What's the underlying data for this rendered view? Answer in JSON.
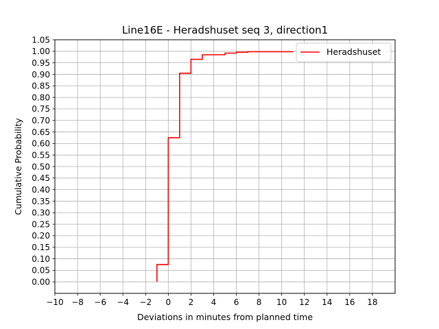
{
  "chart_data": {
    "type": "line",
    "title": "Line16E - Heradshuset seq 3, direction1",
    "xlabel": "Deviations in minutes from planned time",
    "ylabel": "Cumulative Probability",
    "xlim": [
      -10,
      20
    ],
    "ylim": [
      -0.05,
      1.05
    ],
    "x_ticks": [
      -10,
      -8,
      -6,
      -4,
      -2,
      0,
      2,
      4,
      6,
      8,
      10,
      12,
      14,
      16,
      18
    ],
    "x_tick_labels": [
      "−10",
      "−8",
      "−6",
      "−4",
      "−2",
      "0",
      "2",
      "4",
      "6",
      "8",
      "10",
      "12",
      "14",
      "16",
      "18"
    ],
    "y_ticks": [
      0.0,
      0.05,
      0.1,
      0.15,
      0.2,
      0.25,
      0.3,
      0.35,
      0.4,
      0.45,
      0.5,
      0.55,
      0.6,
      0.65,
      0.7,
      0.75,
      0.8,
      0.85,
      0.9,
      0.95,
      1.0,
      1.05
    ],
    "y_tick_labels": [
      "0.00",
      "0.05",
      "0.10",
      "0.15",
      "0.20",
      "0.25",
      "0.30",
      "0.35",
      "0.40",
      "0.45",
      "0.50",
      "0.55",
      "0.60",
      "0.65",
      "0.70",
      "0.75",
      "0.80",
      "0.85",
      "0.90",
      "0.95",
      "1.00",
      "1.05"
    ],
    "grid": true,
    "legend_position": "top-right",
    "series": [
      {
        "name": "Heradshuset",
        "color": "#ff0000",
        "step": "post",
        "x": [
          -1,
          0,
          1,
          2,
          3,
          5,
          6,
          7,
          11
        ],
        "y": [
          0.075,
          0.625,
          0.905,
          0.965,
          0.985,
          0.992,
          0.996,
          0.998,
          1.0
        ]
      }
    ]
  }
}
